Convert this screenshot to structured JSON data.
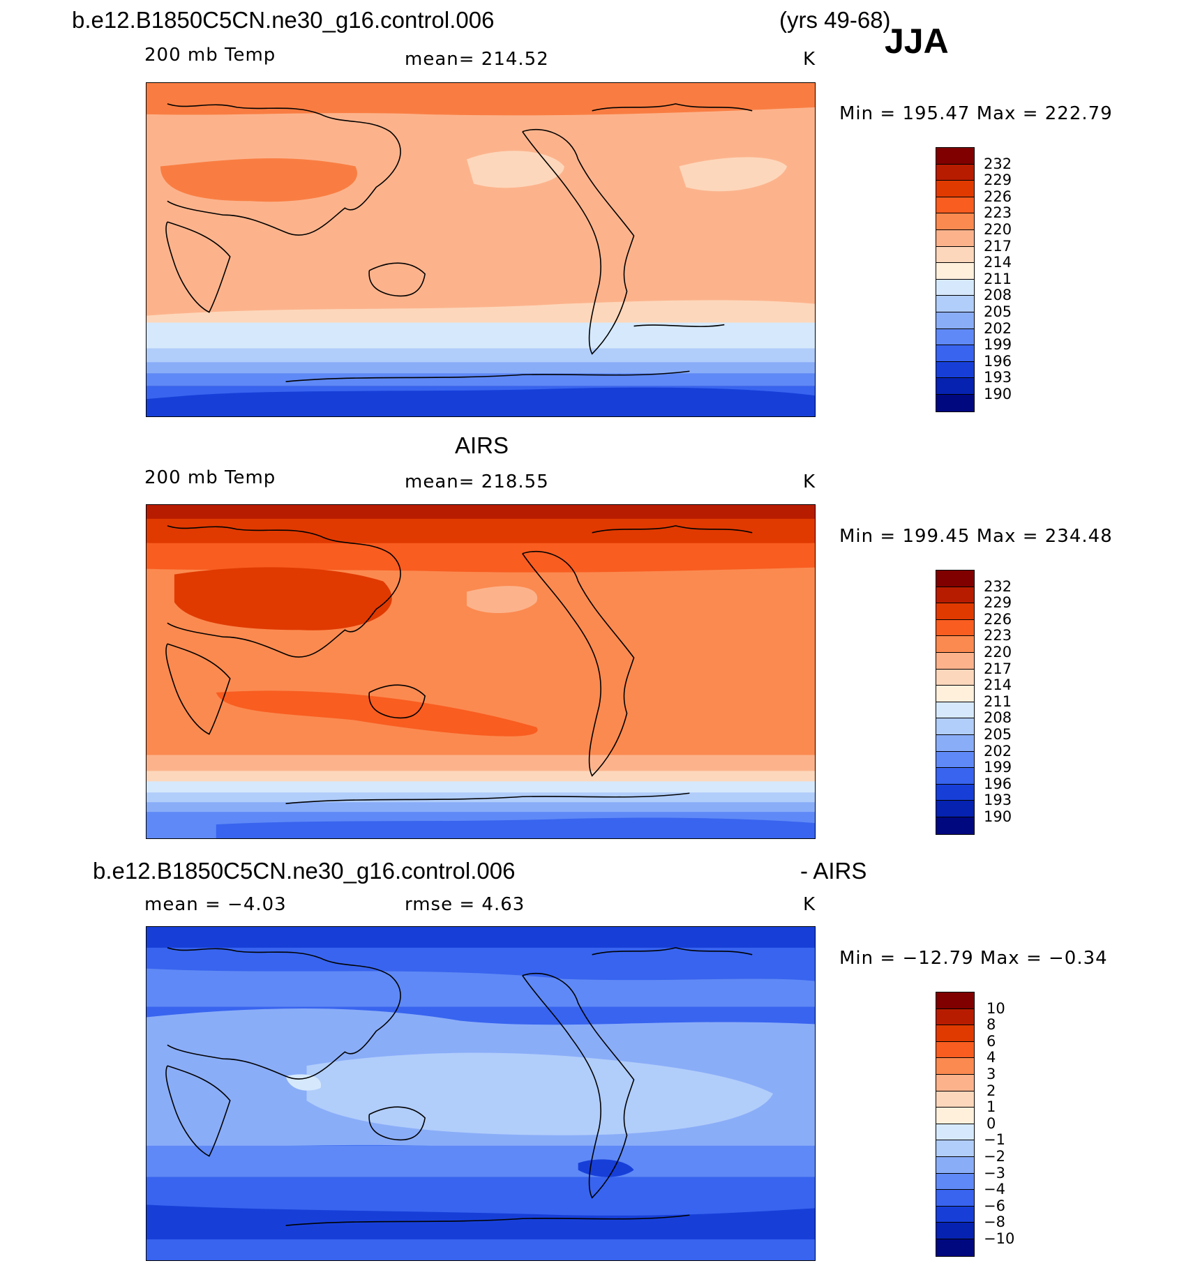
{
  "figure": {
    "case_name": "b.e12.B1850C5CN.ne30_g16.control.006",
    "years": "(yrs 49-68)",
    "season": "JJA"
  },
  "panel1": {
    "variable": "200 mb Temp",
    "mean_text": "mean=  214.52",
    "units": "K",
    "minmax_text": "Min  =  195.47  Max  =  222.79",
    "colorbar": {
      "labels": [
        "232",
        "229",
        "226",
        "223",
        "220",
        "217",
        "214",
        "211",
        "208",
        "205",
        "202",
        "199",
        "196",
        "193",
        "190"
      ],
      "colors": [
        "#800000",
        "#b81c00",
        "#e03a00",
        "#f95d20",
        "#fb8a50",
        "#fcb38c",
        "#fdd7bb",
        "#fff0dc",
        "#d6e9fc",
        "#b1cdfa",
        "#8aadf8",
        "#5f89f6",
        "#3864ef",
        "#173fd8",
        "#0622b0",
        "#000880"
      ]
    }
  },
  "panel2": {
    "title": "AIRS",
    "variable": "200 mb Temp",
    "mean_text": "mean=  218.55",
    "units": "K",
    "minmax_text": "Min  =  199.45  Max  =  234.48",
    "colorbar": {
      "labels": [
        "232",
        "229",
        "226",
        "223",
        "220",
        "217",
        "214",
        "211",
        "208",
        "205",
        "202",
        "199",
        "196",
        "193",
        "190"
      ],
      "colors": [
        "#800000",
        "#b81c00",
        "#e03a00",
        "#f95d20",
        "#fb8a50",
        "#fcb38c",
        "#fdd7bb",
        "#fff0dc",
        "#d6e9fc",
        "#b1cdfa",
        "#8aadf8",
        "#5f89f6",
        "#3864ef",
        "#173fd8",
        "#0622b0",
        "#000880"
      ]
    }
  },
  "panel3": {
    "title_left": "b.e12.B1850C5CN.ne30_g16.control.006",
    "title_right": "- AIRS",
    "mean_text": "mean =   −4.03",
    "rmse_text": "rmse =     4.63",
    "units": "K",
    "minmax_text": "Min  =  −12.79  Max  =   −0.34",
    "colorbar": {
      "labels": [
        "10",
        "8",
        "6",
        "4",
        "3",
        "2",
        "1",
        "0",
        "−1",
        "−2",
        "−3",
        "−4",
        "−6",
        "−8",
        "−10"
      ],
      "colors": [
        "#800000",
        "#b81c00",
        "#e03a00",
        "#f95d20",
        "#fb8a50",
        "#fcb38c",
        "#fdd7bb",
        "#fff0dc",
        "#d6e9fc",
        "#b1cdfa",
        "#8aadf8",
        "#5f89f6",
        "#3864ef",
        "#173fd8",
        "#0622b0",
        "#000880"
      ]
    }
  }
}
